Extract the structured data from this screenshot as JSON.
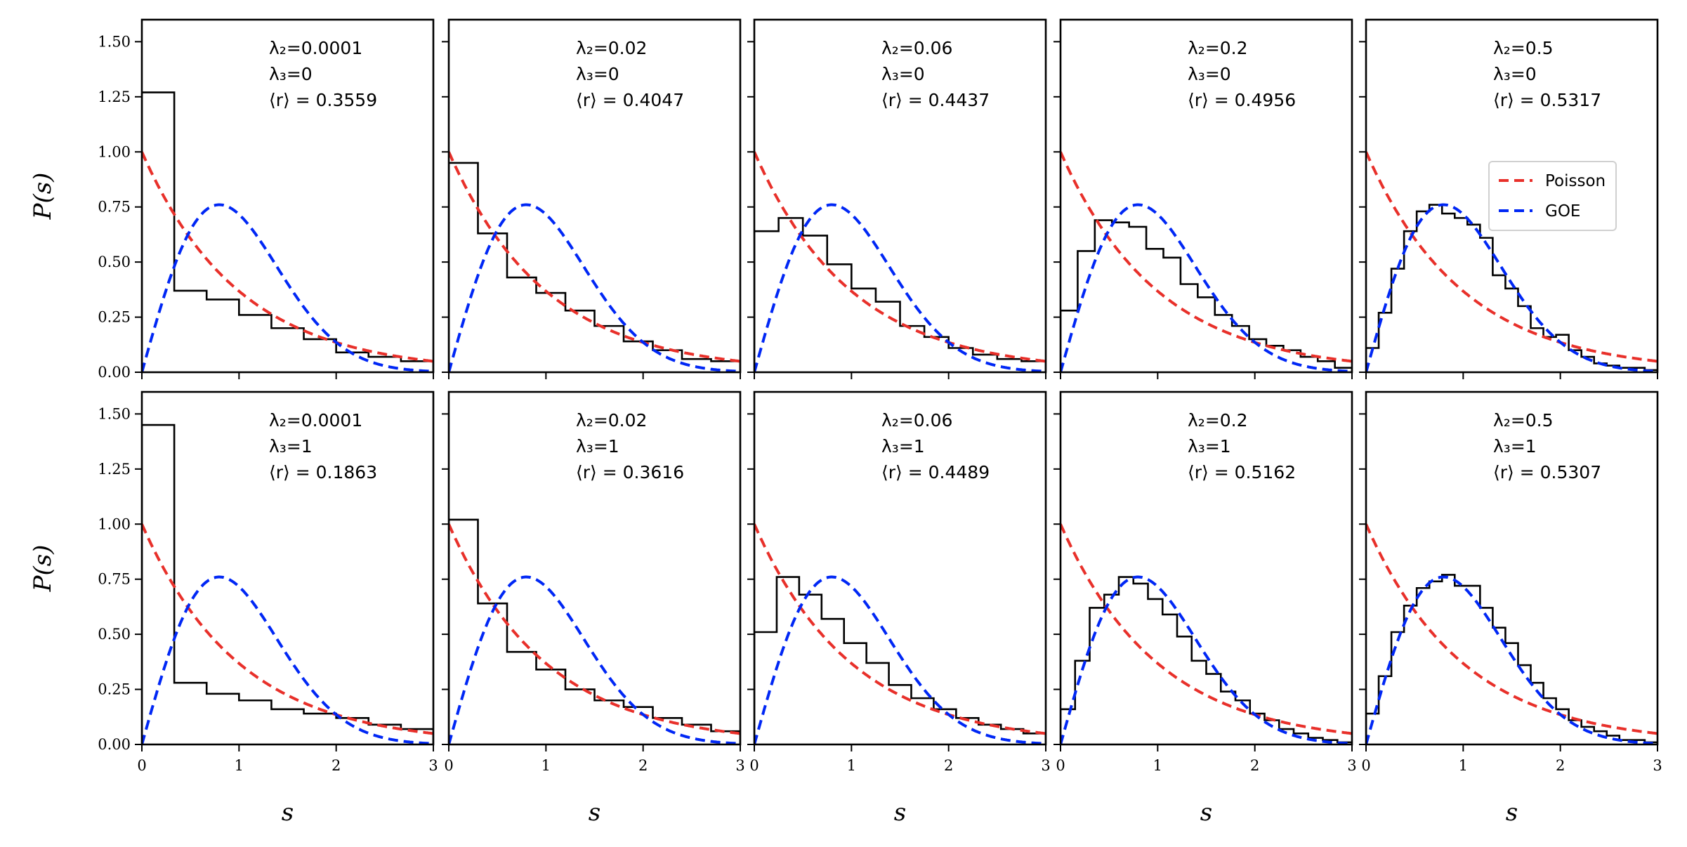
{
  "figure": {
    "xlabel": "s",
    "ylabel": "P(s)",
    "xlim": [
      0,
      3
    ],
    "ylim": [
      0,
      1.6
    ],
    "xticks": [
      0,
      1,
      2,
      3
    ],
    "xtick_labels": [
      "0",
      "1",
      "2",
      "3"
    ],
    "yticks": [
      0,
      0.25,
      0.5,
      0.75,
      1.0,
      1.25,
      1.5
    ],
    "ytick_labels": [
      "0.00",
      "0.25",
      "0.50",
      "0.75",
      "1.00",
      "1.25",
      "1.50"
    ],
    "colors": {
      "poisson": "#e8302a",
      "goe": "#0027f5",
      "histogram": "#000000"
    },
    "legend": {
      "placement": "center-right of top-right panel",
      "entries": [
        {
          "label": "Poisson",
          "series": "poisson"
        },
        {
          "label": "GOE",
          "series": "goe"
        }
      ]
    },
    "grid": false
  },
  "chart_data": [
    {
      "type": "histogram+line",
      "row": 0,
      "col": 0,
      "label_l2": "λ₂=0.0001",
      "label_l3": "λ₃=0",
      "label_r": "⟨r⟩ = 0.3559",
      "bin_width": 0.3333,
      "values": [
        1.27,
        0.37,
        0.33,
        0.26,
        0.2,
        0.15,
        0.09,
        0.07,
        0.05
      ]
    },
    {
      "type": "histogram+line",
      "row": 0,
      "col": 1,
      "label_l2": "λ₂=0.02",
      "label_l3": "λ₃=0",
      "label_r": "⟨r⟩ = 0.4047",
      "bin_width": 0.3,
      "values": [
        0.95,
        0.63,
        0.43,
        0.36,
        0.28,
        0.21,
        0.14,
        0.1,
        0.06,
        0.05
      ]
    },
    {
      "type": "histogram+line",
      "row": 0,
      "col": 2,
      "label_l2": "λ₂=0.06",
      "label_l3": "λ₃=0",
      "label_r": "⟨r⟩ = 0.4437",
      "bin_width": 0.25,
      "values": [
        0.64,
        0.7,
        0.62,
        0.49,
        0.38,
        0.32,
        0.21,
        0.16,
        0.11,
        0.08,
        0.06,
        0.05
      ]
    },
    {
      "type": "histogram+line",
      "row": 0,
      "col": 3,
      "label_l2": "λ₂=0.2",
      "label_l3": "λ₃=0",
      "label_r": "⟨r⟩ = 0.4956",
      "bin_width": 0.1765,
      "values": [
        0.28,
        0.55,
        0.69,
        0.68,
        0.66,
        0.56,
        0.52,
        0.4,
        0.34,
        0.26,
        0.21,
        0.15,
        0.12,
        0.1,
        0.07,
        0.05,
        0.02
      ]
    },
    {
      "type": "histogram+line",
      "row": 0,
      "col": 4,
      "label_l2": "λ₂=0.5",
      "label_l3": "λ₃=0",
      "label_r": "⟨r⟩ = 0.5317",
      "bin_width": 0.1304,
      "values": [
        0.11,
        0.27,
        0.47,
        0.64,
        0.73,
        0.76,
        0.72,
        0.7,
        0.67,
        0.61,
        0.44,
        0.38,
        0.3,
        0.2,
        0.16,
        0.17,
        0.1,
        0.07,
        0.04,
        0.03,
        0.02,
        0.02,
        0.01
      ]
    },
    {
      "type": "histogram+line",
      "row": 1,
      "col": 0,
      "label_l2": "λ₂=0.0001",
      "label_l3": "λ₃=1",
      "label_r": "⟨r⟩ = 0.1863",
      "bin_width": 0.3333,
      "values": [
        1.45,
        0.28,
        0.23,
        0.2,
        0.16,
        0.14,
        0.12,
        0.09,
        0.07
      ]
    },
    {
      "type": "histogram+line",
      "row": 1,
      "col": 1,
      "label_l2": "λ₂=0.02",
      "label_l3": "λ₃=1",
      "label_r": "⟨r⟩ = 0.3616",
      "bin_width": 0.3,
      "values": [
        1.02,
        0.64,
        0.42,
        0.34,
        0.25,
        0.2,
        0.17,
        0.12,
        0.09,
        0.06
      ]
    },
    {
      "type": "histogram+line",
      "row": 1,
      "col": 2,
      "label_l2": "λ₂=0.06",
      "label_l3": "λ₃=1",
      "label_r": "⟨r⟩ = 0.4489",
      "bin_width": 0.2308,
      "values": [
        0.51,
        0.76,
        0.68,
        0.57,
        0.46,
        0.37,
        0.27,
        0.21,
        0.16,
        0.12,
        0.09,
        0.07,
        0.05
      ]
    },
    {
      "type": "histogram+line",
      "row": 1,
      "col": 3,
      "label_l2": "λ₂=0.2",
      "label_l3": "λ₃=1",
      "label_r": "⟨r⟩ = 0.5162",
      "bin_width": 0.15,
      "values": [
        0.16,
        0.38,
        0.62,
        0.68,
        0.76,
        0.73,
        0.66,
        0.59,
        0.49,
        0.38,
        0.32,
        0.24,
        0.2,
        0.14,
        0.11,
        0.07,
        0.05,
        0.03,
        0.02,
        0.01
      ]
    },
    {
      "type": "histogram+line",
      "row": 1,
      "col": 4,
      "label_l2": "λ₂=0.5",
      "label_l3": "λ₃=1",
      "label_r": "⟨r⟩ = 0.5307",
      "bin_width": 0.1304,
      "values": [
        0.14,
        0.31,
        0.51,
        0.63,
        0.71,
        0.74,
        0.77,
        0.72,
        0.72,
        0.62,
        0.53,
        0.46,
        0.36,
        0.28,
        0.21,
        0.16,
        0.11,
        0.08,
        0.06,
        0.04,
        0.02,
        0.02,
        0.01
      ]
    }
  ]
}
